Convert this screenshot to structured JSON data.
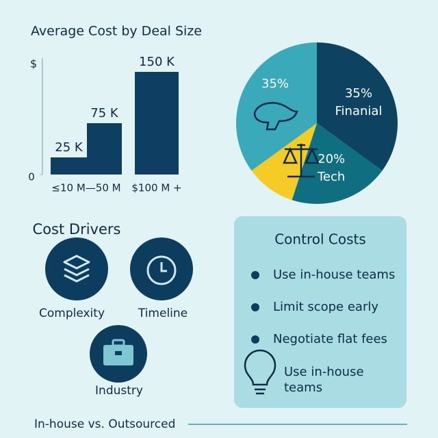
{
  "chart_data": [
    {
      "type": "bar",
      "title": "Average Cost by Deal Size",
      "ylabel": "$",
      "categories": [
        "≤10 M—50 M",
        null,
        "$100 M +"
      ],
      "values": [
        25000,
        75000,
        150000
      ],
      "value_labels": [
        "25 K",
        "75 K",
        "150 K"
      ],
      "color": "#0e3f62",
      "ylim": [
        0,
        170000
      ],
      "yticks": [
        0
      ]
    },
    {
      "type": "pie",
      "categories": [
        "Finanial",
        "Tech",
        null,
        null
      ],
      "values": [
        35,
        20,
        10,
        35
      ],
      "value_labels": [
        "35%",
        "20%",
        null,
        "35%"
      ],
      "colors": [
        "#0d4361",
        "#0f6f80",
        "#f5cc25",
        "#3aa9b9"
      ]
    }
  ],
  "cost_drivers": {
    "title": "Cost Drivers",
    "items": [
      "Complexity",
      "Timeline",
      "Industry"
    ]
  },
  "control_costs": {
    "title": "Control Costs",
    "bullets": [
      "Use in-house teams",
      "Limit scope early",
      "Negotiate flat fees"
    ],
    "tip": [
      "Use in-house",
      "teams"
    ]
  },
  "footer": "In-house vs. Outsourced"
}
